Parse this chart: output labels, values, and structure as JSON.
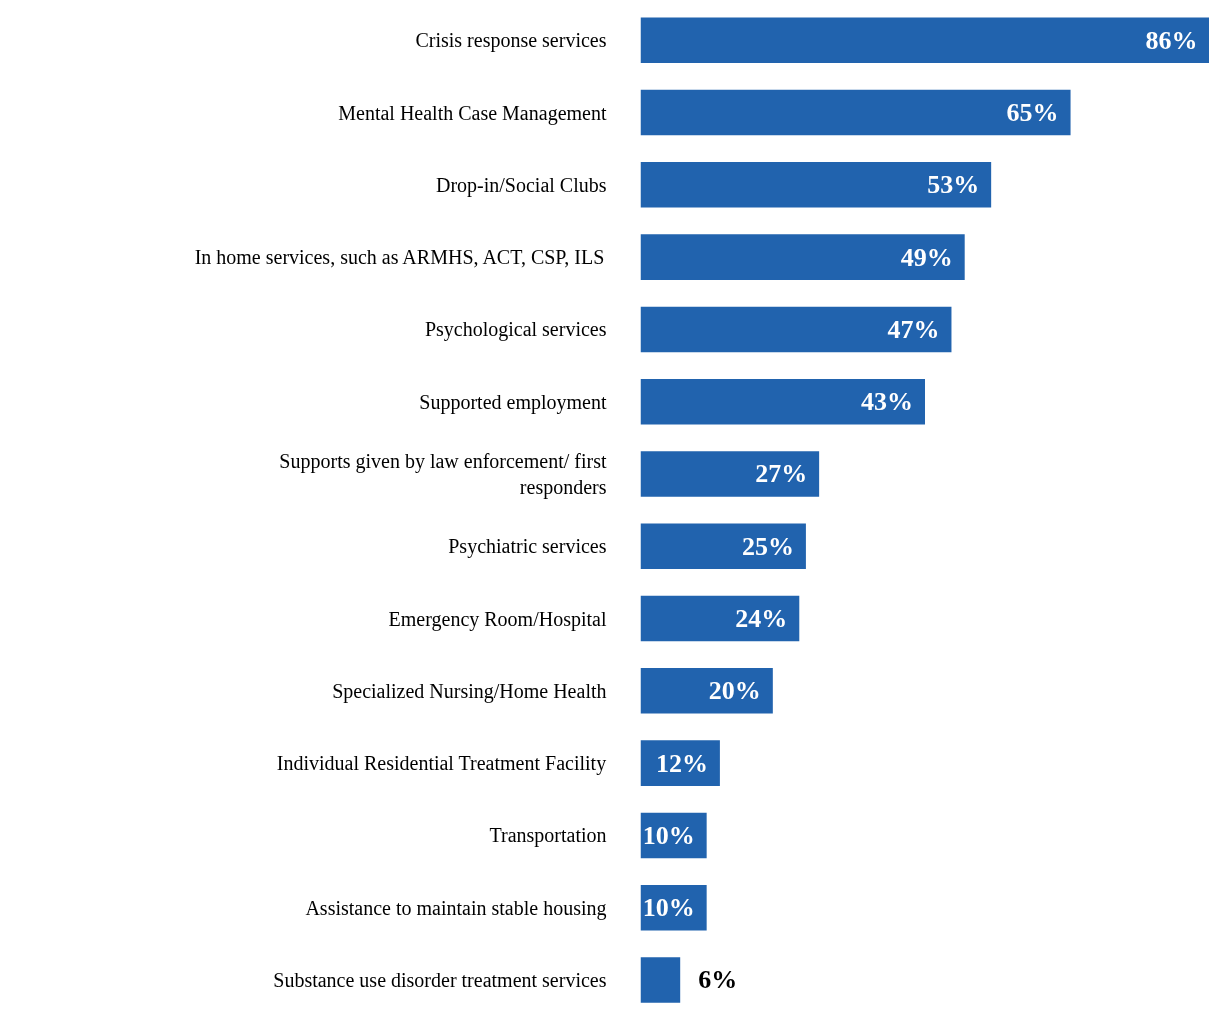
{
  "chart_data": {
    "type": "bar",
    "orientation": "horizontal",
    "color": "#2163ae",
    "categories": [
      "Crisis response services",
      "Mental Health Case Management",
      "Drop-in/Social Clubs",
      "In home services, such as ARMHS, ACT, CSP, ILS",
      "Psychological services",
      "Supported employment",
      "Supports given by law enforcement/ first responders",
      "Psychiatric services",
      "Emergency Room/Hospital",
      "Specialized Nursing/Home Health",
      "Individual Residential Treatment Facility",
      "Transportation",
      "Assistance to maintain stable housing",
      "Substance use disorder treatment services"
    ],
    "values": [
      86,
      65,
      53,
      49,
      47,
      43,
      27,
      25,
      24,
      20,
      12,
      10,
      10,
      6
    ],
    "value_labels": [
      "86%",
      "65%",
      "53%",
      "49%",
      "47%",
      "43%",
      "27%",
      "25%",
      "24%",
      "20%",
      "12%",
      "10%",
      "10%",
      "6%"
    ],
    "grid": false
  }
}
